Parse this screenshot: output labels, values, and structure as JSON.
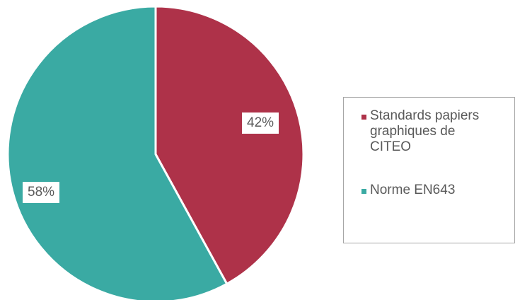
{
  "chart_data": {
    "type": "pie",
    "title": "",
    "slices": [
      {
        "label": "Standards papiers graphiques de CITEO",
        "value": 42,
        "display": "42%",
        "color": "#ae3249"
      },
      {
        "label": "Norme EN643",
        "value": 58,
        "display": "58%",
        "color": "#3aaaa3"
      }
    ],
    "legend": {
      "placement": "right"
    }
  }
}
